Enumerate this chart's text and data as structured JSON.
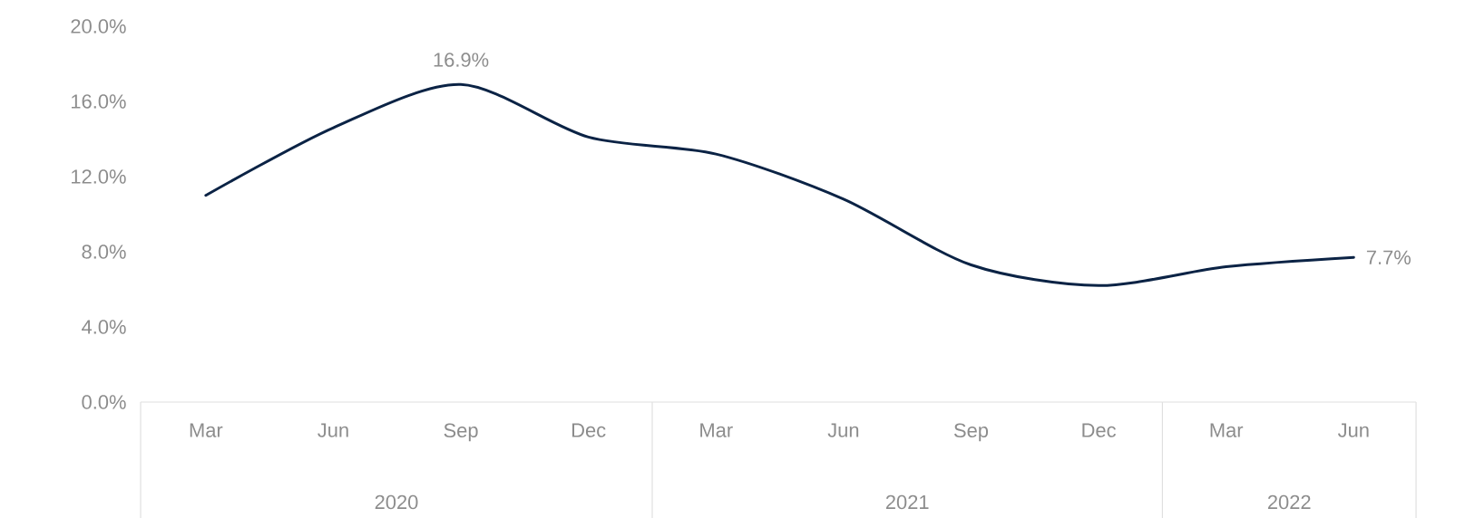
{
  "chart_data": {
    "type": "line",
    "x": [
      "2020-03",
      "2020-06",
      "2020-09",
      "2020-12",
      "2021-03",
      "2021-06",
      "2021-09",
      "2021-12",
      "2022-03",
      "2022-06"
    ],
    "values": [
      11.0,
      14.6,
      16.9,
      14.1,
      13.2,
      10.8,
      7.3,
      6.2,
      7.2,
      7.7
    ],
    "value_labels": [
      null,
      null,
      "16.9%",
      null,
      null,
      null,
      null,
      null,
      null,
      "7.7%"
    ],
    "color": "#0b2345",
    "marker": "none",
    "line_style": "solid",
    "xlim": [
      "2020-01-15",
      "2022-07-15"
    ],
    "xticks": [
      {
        "value": "2020-03",
        "label": "Mar"
      },
      {
        "value": "2020-06",
        "label": "Jun"
      },
      {
        "value": "2020-09",
        "label": "Sep"
      },
      {
        "value": "2020-12",
        "label": "Dec"
      },
      {
        "value": "2021-03",
        "label": "Mar"
      },
      {
        "value": "2021-06",
        "label": "Jun"
      },
      {
        "value": "2021-09",
        "label": "Sep"
      },
      {
        "value": "2021-12",
        "label": "Dec"
      },
      {
        "value": "2022-03",
        "label": "Mar"
      },
      {
        "value": "2022-06",
        "label": "Jun"
      }
    ],
    "annotations": [
      "2020",
      "2021",
      "2022"
    ],
    "ylim": [
      0,
      20
    ],
    "yticks": [
      {
        "value": 0,
        "label": "0.0%"
      },
      {
        "value": 4,
        "label": "4.0%"
      },
      {
        "value": 8,
        "label": "8.0%"
      },
      {
        "value": 12,
        "label": "12.0%"
      },
      {
        "value": 16,
        "label": "16.0%"
      },
      {
        "value": 20,
        "label": "20.0%"
      }
    ]
  }
}
